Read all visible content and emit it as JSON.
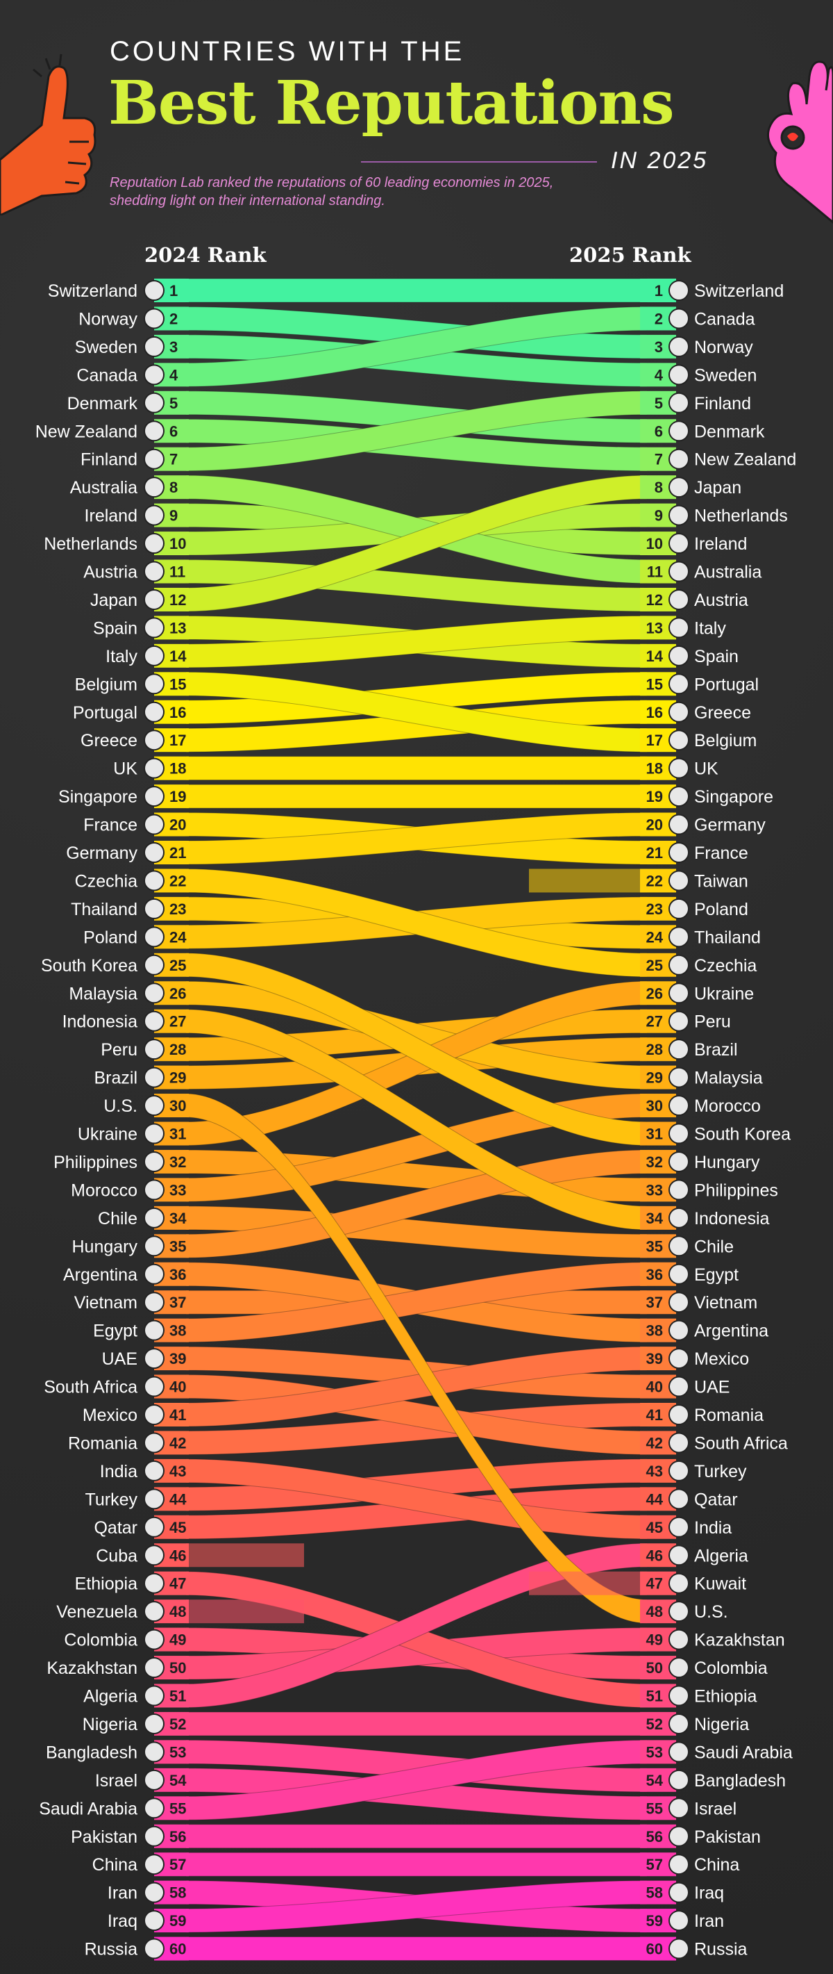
{
  "header": {
    "kicker": "COUNTRIES WITH THE",
    "title": "Best Reputations",
    "year": "IN 2025",
    "description": "Reputation Lab ranked the reputations of 60 leading economies in 2025, shedding light on their international standing.",
    "left_icon": "thumbs-up-hand-icon",
    "right_icon": "ok-hand-icon"
  },
  "colors": {
    "title": "#d5f03b",
    "description": "#e58ad6",
    "gradient": [
      "#43f2a0",
      "#ffee00",
      "#ffa815",
      "#ff5d55",
      "#ff2fc3"
    ]
  },
  "chart_data": {
    "type": "bump",
    "left_label": "2024 Rank",
    "right_label": "2025 Rank",
    "rank_2024": [
      "Switzerland",
      "Norway",
      "Sweden",
      "Canada",
      "Denmark",
      "New Zealand",
      "Finland",
      "Australia",
      "Ireland",
      "Netherlands",
      "Austria",
      "Japan",
      "Spain",
      "Italy",
      "Belgium",
      "Portugal",
      "Greece",
      "UK",
      "Singapore",
      "France",
      "Germany",
      "Czechia",
      "Thailand",
      "Poland",
      "South Korea",
      "Malaysia",
      "Indonesia",
      "Peru",
      "Brazil",
      "U.S.",
      "Ukraine",
      "Philippines",
      "Morocco",
      "Chile",
      "Hungary",
      "Argentina",
      "Vietnam",
      "Egypt",
      "UAE",
      "South Africa",
      "Mexico",
      "Romania",
      "India",
      "Turkey",
      "Qatar",
      "Cuba",
      "Ethiopia",
      "Venezuela",
      "Colombia",
      "Kazakhstan",
      "Algeria",
      "Nigeria",
      "Bangladesh",
      "Israel",
      "Saudi Arabia",
      "Pakistan",
      "China",
      "Iran",
      "Iraq",
      "Russia"
    ],
    "rank_2025": [
      "Switzerland",
      "Canada",
      "Norway",
      "Sweden",
      "Finland",
      "Denmark",
      "New Zealand",
      "Japan",
      "Netherlands",
      "Ireland",
      "Australia",
      "Austria",
      "Italy",
      "Spain",
      "Portugal",
      "Greece",
      "Belgium",
      "UK",
      "Singapore",
      "Germany",
      "France",
      "Taiwan",
      "Poland",
      "Thailand",
      "Czechia",
      "Ukraine",
      "Peru",
      "Brazil",
      "Malaysia",
      "Morocco",
      "South Korea",
      "Hungary",
      "Philippines",
      "Indonesia",
      "Chile",
      "Egypt",
      "Vietnam",
      "Argentina",
      "Mexico",
      "UAE",
      "Romania",
      "South Africa",
      "Turkey",
      "Qatar",
      "India",
      "Algeria",
      "Kuwait",
      "U.S.",
      "Kazakhstan",
      "Colombia",
      "Ethiopia",
      "Nigeria",
      "Saudi Arabia",
      "Bangladesh",
      "Israel",
      "Pakistan",
      "China",
      "Iraq",
      "Iran",
      "Russia"
    ]
  }
}
